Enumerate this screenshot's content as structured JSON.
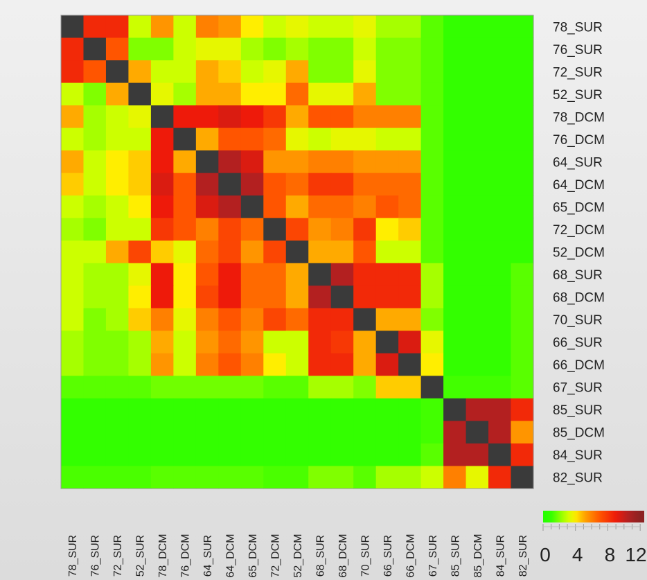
{
  "chart_data": {
    "type": "heatmap",
    "title": "",
    "xlabel": "",
    "ylabel": "",
    "row_labels": [
      "78_SUR",
      "76_SUR",
      "72_SUR",
      "52_SUR",
      "78_DCM",
      "76_DCM",
      "64_SUR",
      "64_DCM",
      "65_DCM",
      "72_DCM",
      "52_DCM",
      "68_SUR",
      "68_DCM",
      "70_SUR",
      "66_SUR",
      "66_DCM",
      "67_SUR",
      "85_SUR",
      "85_DCM",
      "84_SUR",
      "82_SUR"
    ],
    "col_labels": [
      "78_SUR",
      "76_SUR",
      "72_SUR",
      "52_SUR",
      "78_DCM",
      "76_DCM",
      "64_SUR",
      "64_DCM",
      "65_DCM",
      "72_DCM",
      "52_DCM",
      "68_SUR",
      "68_DCM",
      "70_SUR",
      "66_SUR",
      "66_DCM",
      "67_SUR",
      "85_SUR",
      "85_DCM",
      "84_SUR",
      "82_SUR"
    ],
    "values": [
      [
        null,
        8.5,
        8.5,
        3,
        5.5,
        3,
        6,
        5.5,
        4,
        3,
        3.5,
        3,
        3,
        3.5,
        2.5,
        2.5,
        1.5,
        1,
        1,
        1,
        1
      ],
      [
        8.5,
        null,
        7,
        2,
        2,
        3,
        3.5,
        3.5,
        2.5,
        2,
        2.5,
        2,
        2,
        3,
        2,
        2,
        1.5,
        1,
        1,
        1,
        1
      ],
      [
        8.5,
        7,
        null,
        5,
        3,
        3,
        5,
        4.5,
        3,
        3.5,
        5,
        2,
        2,
        3.5,
        2,
        2,
        1.5,
        1,
        1,
        1,
        1
      ],
      [
        3,
        2,
        5,
        null,
        3.5,
        2.5,
        5,
        5,
        4,
        4,
        6.5,
        3.5,
        3.5,
        5,
        2,
        2,
        1.5,
        1,
        1,
        1,
        1
      ],
      [
        5,
        2.5,
        3,
        3.5,
        null,
        9,
        9,
        9.5,
        9,
        8,
        5,
        7,
        7,
        6,
        6,
        6,
        1.5,
        1,
        1,
        1,
        1
      ],
      [
        3,
        2.5,
        3,
        3,
        9,
        null,
        5,
        7,
        7,
        6.5,
        3.5,
        3,
        3.5,
        3.5,
        3,
        3,
        1.5,
        1,
        1,
        1,
        1
      ],
      [
        5,
        3,
        4,
        4.5,
        9,
        5,
        null,
        10.5,
        9.5,
        5.5,
        5.5,
        6,
        6,
        5.5,
        5.5,
        5.5,
        1.5,
        1,
        1,
        1,
        1
      ],
      [
        4.5,
        3,
        4,
        4.5,
        9.5,
        7,
        10.5,
        null,
        10.5,
        7,
        6.5,
        8,
        8,
        6.5,
        6.5,
        6.5,
        1.5,
        1,
        1,
        1,
        1
      ],
      [
        3,
        2.5,
        3,
        4,
        9,
        7,
        9.5,
        10.5,
        null,
        7,
        5,
        6.5,
        6.5,
        6,
        7,
        6.5,
        1.5,
        1,
        1,
        1,
        1
      ],
      [
        2.5,
        2,
        3,
        3,
        8,
        7,
        6,
        7.5,
        6.5,
        null,
        7.5,
        5.5,
        6,
        8,
        4,
        4.5,
        1.5,
        1,
        1,
        1,
        1
      ],
      [
        3,
        3,
        5,
        7.5,
        4.5,
        3.5,
        6.5,
        7.5,
        5.5,
        7.5,
        null,
        5,
        5,
        7,
        3,
        3,
        1.5,
        1,
        1,
        1,
        1
      ],
      [
        3,
        2.5,
        2.5,
        3.5,
        9,
        4,
        7,
        9,
        6.5,
        6.5,
        5,
        null,
        10.5,
        8.5,
        8.5,
        8.5,
        2.5,
        1,
        1,
        1,
        1.5
      ],
      [
        3,
        2.5,
        2.5,
        4,
        9,
        4,
        7.5,
        9,
        6.5,
        6.5,
        5,
        10.5,
        null,
        8.5,
        8.5,
        8.5,
        2.5,
        1,
        1,
        1,
        1.5
      ],
      [
        3,
        2,
        2.5,
        4.5,
        6,
        3.5,
        6,
        7,
        6,
        7.5,
        6.5,
        8.5,
        8.5,
        null,
        5,
        5,
        2,
        1,
        1,
        1,
        1.5
      ],
      [
        2.5,
        2,
        2,
        2.5,
        5,
        3,
        5.5,
        6.5,
        5.5,
        3,
        3,
        8.5,
        8,
        5,
        null,
        9.5,
        3.5,
        1,
        1,
        1,
        1.5
      ],
      [
        2.5,
        2,
        2,
        2.5,
        5.5,
        3,
        6,
        7,
        6,
        4,
        3,
        8.5,
        8.5,
        5,
        9.5,
        null,
        4,
        1,
        1,
        1,
        1.5
      ],
      [
        1.5,
        1.5,
        1.5,
        1.5,
        1.8,
        1.8,
        1.8,
        1.8,
        1.8,
        1.5,
        1.5,
        2.5,
        2.5,
        2,
        4.5,
        4.5,
        null,
        1.2,
        1.2,
        1.2,
        1.5
      ],
      [
        1,
        1,
        1,
        1,
        1,
        1,
        1,
        1,
        1,
        1,
        1,
        1,
        1,
        1,
        1,
        1,
        1.2,
        null,
        10.5,
        10.5,
        8.5
      ],
      [
        1,
        1,
        1,
        1,
        1,
        1,
        1,
        1,
        1,
        1,
        1,
        1,
        1,
        1,
        1,
        1,
        1.2,
        10.5,
        null,
        10.5,
        5.5
      ],
      [
        1,
        1,
        1,
        1,
        1,
        1,
        1,
        1,
        1,
        1,
        1,
        1,
        1,
        1,
        1,
        1,
        1.5,
        10.5,
        10.5,
        null,
        8.5
      ],
      [
        1.3,
        1.3,
        1.3,
        1.3,
        1.5,
        1.5,
        1.5,
        1.5,
        1.5,
        1.3,
        1.3,
        2,
        2,
        1.5,
        2.5,
        2.5,
        3,
        6,
        3.5,
        8.5,
        null
      ]
    ],
    "diagonal_color": "#3a3a3a",
    "colorscale": [
      {
        "v": 0,
        "color": "#22ff00"
      },
      {
        "v": 1,
        "color": "#33ff00"
      },
      {
        "v": 3,
        "color": "#ccff00"
      },
      {
        "v": 4,
        "color": "#ffee00"
      },
      {
        "v": 5,
        "color": "#ffaa00"
      },
      {
        "v": 7,
        "color": "#ff5500"
      },
      {
        "v": 9,
        "color": "#ee1a0a"
      },
      {
        "v": 10.5,
        "color": "#b32020"
      },
      {
        "v": 12,
        "color": "#8b2222"
      }
    ],
    "colorbar": {
      "ticks": [
        0,
        4,
        8,
        12
      ],
      "tick_labels": [
        "0",
        "4",
        "8",
        "12"
      ],
      "range": [
        0,
        12.5
      ]
    },
    "grid": false
  }
}
